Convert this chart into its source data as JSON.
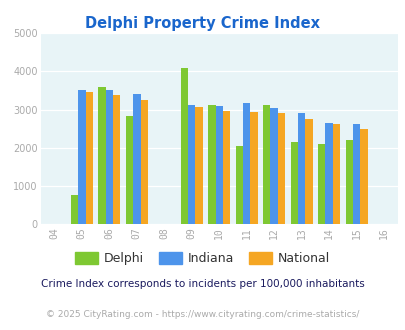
{
  "title": "Delphi Property Crime Index",
  "title_color": "#1a66cc",
  "years": [
    2005,
    2006,
    2007,
    2009,
    2010,
    2011,
    2012,
    2013,
    2014,
    2015
  ],
  "delphi": [
    780,
    3580,
    2830,
    4080,
    3110,
    2060,
    3120,
    2160,
    2100,
    2200
  ],
  "indiana": [
    3500,
    3520,
    3410,
    3110,
    3080,
    3160,
    3050,
    2900,
    2640,
    2630
  ],
  "national": [
    3470,
    3370,
    3240,
    3060,
    2970,
    2940,
    2900,
    2750,
    2630,
    2490
  ],
  "delphi_color": "#7ec832",
  "indiana_color": "#4d94eb",
  "national_color": "#f5a623",
  "xlim": [
    2003.5,
    2016.5
  ],
  "ylim": [
    0,
    5000
  ],
  "yticks": [
    0,
    1000,
    2000,
    3000,
    4000,
    5000
  ],
  "xticks": [
    2004,
    2005,
    2006,
    2007,
    2008,
    2009,
    2010,
    2011,
    2012,
    2013,
    2014,
    2015,
    2016
  ],
  "bg_color": "#e8f4f7",
  "footer_note": "Crime Index corresponds to incidents per 100,000 inhabitants",
  "copyright": "© 2025 CityRating.com - https://www.cityrating.com/crime-statistics/",
  "bar_width": 0.27,
  "legend_labels": [
    "Delphi",
    "Indiana",
    "National"
  ],
  "grid_color": "#c8dde2"
}
